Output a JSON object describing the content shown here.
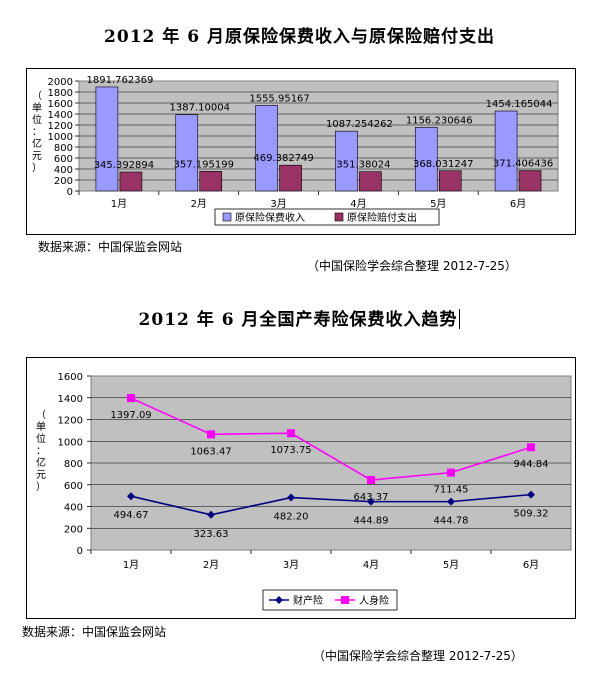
{
  "doc": {
    "title1": "2012 年 6 月原保险保费收入与原保险赔付支出",
    "title2": "2012 年 6 月全国产寿险保费收入趋势",
    "source1": "数据来源：中国保监会网站",
    "note1": "（中国保险学会综合整理    2012-7-25）",
    "source2": "数据来源：中国保监会网站",
    "note2": "（中国保险学会综合整理    2012-7-25）"
  },
  "chart_data": [
    {
      "type": "bar",
      "title": "",
      "ylabel": "（单位：亿元）",
      "ylim": [
        0,
        2000
      ],
      "yticks": [
        0,
        200,
        400,
        600,
        800,
        1000,
        1200,
        1400,
        1600,
        1800,
        2000
      ],
      "categories": [
        "1月",
        "2月",
        "3月",
        "4月",
        "5月",
        "6月"
      ],
      "legend_position": "bottom",
      "grid": true,
      "colors": {
        "plot_bg": "#c0c0c0",
        "premium": "#9999ff",
        "claims": "#993366"
      },
      "series": [
        {
          "name": "原保险保费收入",
          "values": [
            1891.762369,
            1387.10004,
            1555.95167,
            1087.254262,
            1156.230646,
            1454.165044
          ],
          "labels": [
            "1891.762369",
            "1387.10004",
            "1555.95167",
            "1087.254262",
            "1156.230646",
            "1454.165044"
          ]
        },
        {
          "name": "原保险赔付支出",
          "values": [
            345.392894,
            357.195199,
            469.382749,
            351.38024,
            368.031247,
            371.406436
          ],
          "labels": [
            "345.392894",
            "357.195199",
            "469.382749",
            "351.38024",
            "368.031247",
            "371.406436"
          ]
        }
      ]
    },
    {
      "type": "line",
      "title": "",
      "ylabel": "（单位：亿元）",
      "ylim": [
        0,
        1600
      ],
      "yticks": [
        0,
        200,
        400,
        600,
        800,
        1000,
        1200,
        1400,
        1600
      ],
      "categories": [
        "1月",
        "2月",
        "3月",
        "4月",
        "5月",
        "6月"
      ],
      "legend_position": "bottom",
      "grid": true,
      "colors": {
        "plot_bg": "#c0c0c0",
        "property": "#000080",
        "life": "#ff00ff"
      },
      "series": [
        {
          "name": "财产险",
          "values": [
            494.67,
            323.63,
            482.2,
            444.89,
            444.78,
            509.32
          ],
          "labels": [
            "494.67",
            "323.63",
            "482.20",
            "444.89",
            "444.78",
            "509.32"
          ]
        },
        {
          "name": "人身险",
          "values": [
            1397.09,
            1063.47,
            1073.75,
            643.37,
            711.45,
            944.84
          ],
          "labels": [
            "1397.09",
            "1063.47",
            "1073.75",
            "643.37",
            "711.45",
            "944.84"
          ]
        }
      ]
    }
  ]
}
